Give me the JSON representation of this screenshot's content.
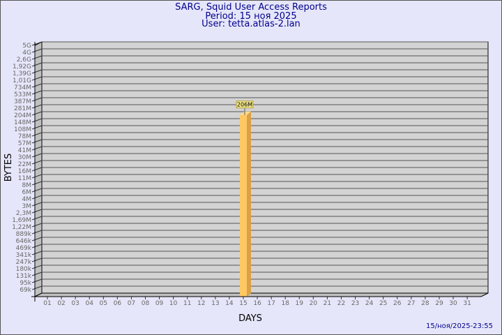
{
  "header": {
    "title": "SARG, Squid User Access Reports",
    "period": "Period: 15 ноя 2025",
    "user": "User: tetta.atlas-2.lan"
  },
  "footer": {
    "timestamp": "15/ноя/2025-23:55"
  },
  "chart_data": {
    "type": "bar",
    "title": "SARG, Squid User Access Reports",
    "xlabel": "DAYS",
    "ylabel": "BYTES",
    "y_scale": "log",
    "grid": true,
    "yticks": [
      "5G",
      "4G",
      "2,6G",
      "1,92G",
      "1,39G",
      "1,01G",
      "734M",
      "533M",
      "387M",
      "281M",
      "204M",
      "148M",
      "108M",
      "78M",
      "57M",
      "41M",
      "30M",
      "22M",
      "16M",
      "11M",
      "8M",
      "6M",
      "4M",
      "3M",
      "2,3M",
      "1,69M",
      "1,22M",
      "889k",
      "646k",
      "469k",
      "341k",
      "247k",
      "180k",
      "131k",
      "95k",
      "69k"
    ],
    "categories": [
      "01",
      "02",
      "03",
      "04",
      "05",
      "06",
      "07",
      "08",
      "09",
      "10",
      "11",
      "12",
      "13",
      "14",
      "15",
      "16",
      "17",
      "18",
      "19",
      "20",
      "21",
      "22",
      "23",
      "24",
      "25",
      "26",
      "27",
      "28",
      "29",
      "30",
      "31"
    ],
    "bars": [
      {
        "day": "15",
        "value": "206M"
      }
    ],
    "colors": {
      "bar_front": "#ffc864",
      "bar_side": "#dca046",
      "panel": "#d3d3d3",
      "background": "#e6e6fa",
      "title": "#00008b"
    }
  }
}
